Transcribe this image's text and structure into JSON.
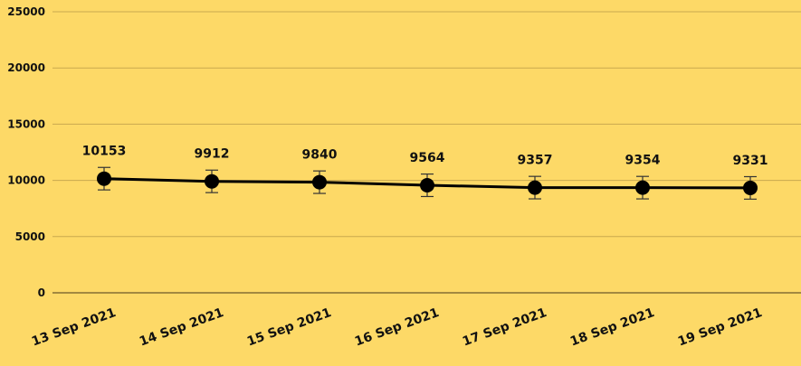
{
  "chart_data": {
    "type": "line",
    "categories": [
      "13 Sep 2021",
      "14 Sep 2021",
      "15 Sep 2021",
      "16 Sep 2021",
      "17 Sep 2021",
      "18 Sep 2021",
      "19 Sep 2021"
    ],
    "series": [
      {
        "values": [
          10153,
          9912,
          9840,
          9564,
          9357,
          9354,
          9331
        ],
        "error": 1000
      }
    ],
    "data_labels": [
      "10153",
      "9912",
      "9840",
      "9564",
      "9357",
      "9354",
      "9331"
    ],
    "yticks": [
      "0",
      "5000",
      "10000",
      "15000",
      "20000",
      "25000"
    ],
    "ylim": [
      0,
      25000
    ],
    "grid": true,
    "legend": "none",
    "colors": {
      "background": "#FDD967",
      "line": "#000000",
      "grid": "#C9A94F",
      "axis": "#6B5A2A"
    }
  }
}
